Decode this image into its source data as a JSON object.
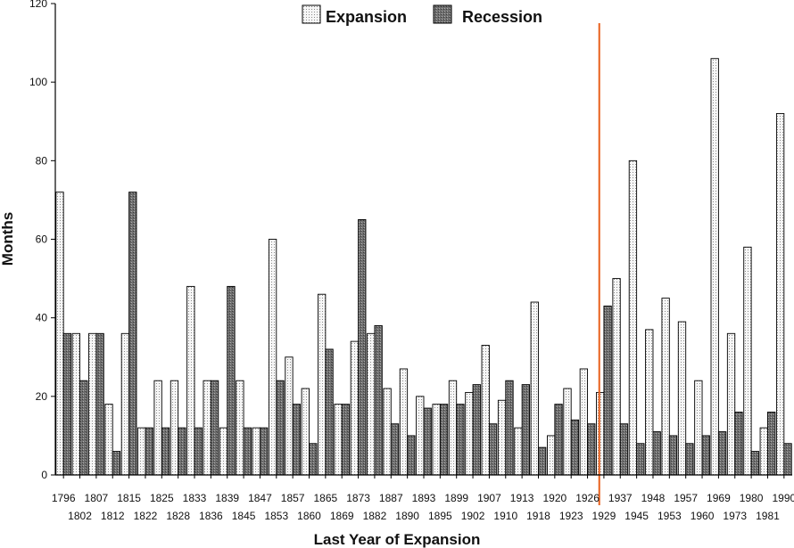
{
  "chart_data": {
    "type": "bar",
    "xlabel": "Last Year of Expansion",
    "ylabel": "Months",
    "ylim": [
      0,
      120
    ],
    "yticks": [
      "0",
      "20",
      "40",
      "60",
      "80",
      "100",
      "120"
    ],
    "grid": false,
    "legend_position": "top-center",
    "categories": [
      "1796",
      "1802",
      "1807",
      "1812",
      "1815",
      "1822",
      "1825",
      "1828",
      "1833",
      "1836",
      "1839",
      "1845",
      "1847",
      "1853",
      "1857",
      "1860",
      "1865",
      "1869",
      "1873",
      "1882",
      "1887",
      "1890",
      "1893",
      "1895",
      "1899",
      "1902",
      "1907",
      "1910",
      "1913",
      "1918",
      "1920",
      "1923",
      "1926",
      "1929",
      "1937",
      "1945",
      "1948",
      "1953",
      "1957",
      "1960",
      "1969",
      "1973",
      "1980",
      "1981",
      "1990"
    ],
    "series": [
      {
        "name": "Expansion",
        "values": [
          72,
          36,
          36,
          18,
          36,
          12,
          24,
          24,
          48,
          24,
          12,
          24,
          12,
          60,
          30,
          22,
          46,
          18,
          34,
          36,
          22,
          27,
          20,
          18,
          24,
          21,
          33,
          19,
          12,
          44,
          10,
          22,
          27,
          21,
          50,
          80,
          37,
          45,
          39,
          24,
          106,
          36,
          58,
          12,
          92
        ]
      },
      {
        "name": "Recession",
        "values": [
          36,
          24,
          36,
          6,
          72,
          12,
          12,
          12,
          12,
          24,
          48,
          12,
          12,
          24,
          18,
          8,
          32,
          18,
          65,
          38,
          13,
          10,
          17,
          18,
          18,
          23,
          13,
          24,
          23,
          7,
          18,
          14,
          13,
          43,
          13,
          8,
          11,
          10,
          8,
          10,
          11,
          16,
          6,
          16,
          8
        ]
      }
    ],
    "annotations": [
      {
        "type": "vertical-line",
        "after_category": "1929",
        "color": "#e8601c"
      }
    ],
    "colors": {
      "expansion_fill": "#f4f4f4",
      "recession_fill": "#7a7a7a",
      "marker_line": "#e8601c",
      "axis": "#000000"
    }
  }
}
